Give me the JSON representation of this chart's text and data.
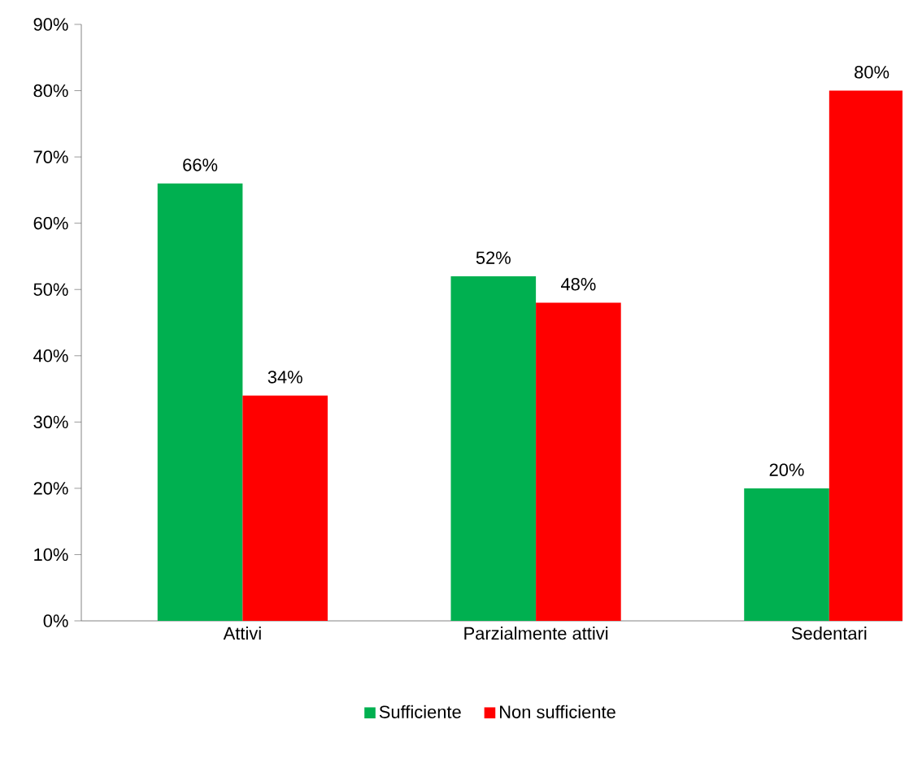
{
  "chart_data": {
    "type": "bar",
    "categories": [
      "Attivi",
      "Parzialmente attivi",
      "Sedentari"
    ],
    "series": [
      {
        "name": "Sufficiente",
        "color": "#00b050",
        "values": [
          66,
          52,
          20
        ],
        "value_labels": [
          "66%",
          "52%",
          "20%"
        ]
      },
      {
        "name": "Non sufficiente",
        "color": "#ff0000",
        "values": [
          34,
          48,
          80
        ],
        "value_labels": [
          "34%",
          "48%",
          "80%"
        ]
      }
    ],
    "ylim": [
      0,
      90
    ],
    "yticks": [
      {
        "value": 0,
        "label": "0%"
      },
      {
        "value": 10,
        "label": "10%"
      },
      {
        "value": 20,
        "label": "20%"
      },
      {
        "value": 30,
        "label": "30%"
      },
      {
        "value": 40,
        "label": "40%"
      },
      {
        "value": 50,
        "label": "50%"
      },
      {
        "value": 60,
        "label": "60%"
      },
      {
        "value": 70,
        "label": "70%"
      },
      {
        "value": 80,
        "label": "80%"
      },
      {
        "value": 90,
        "label": "90%"
      }
    ],
    "grid": false,
    "legend": "bottom"
  }
}
